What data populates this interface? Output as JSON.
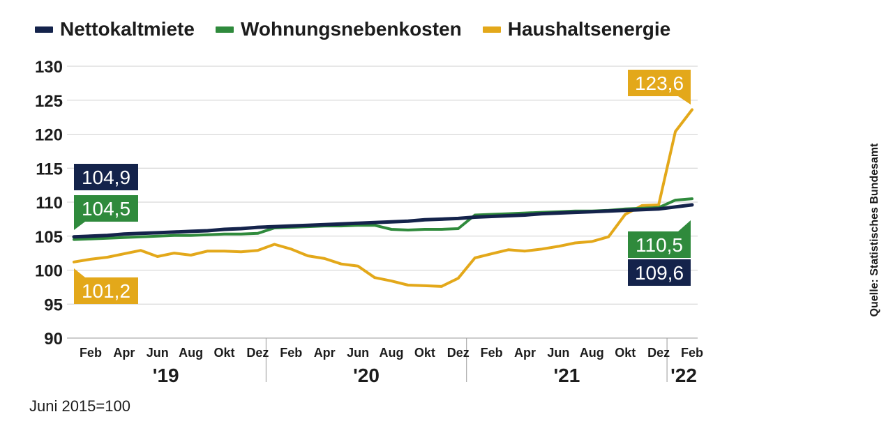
{
  "legend": [
    {
      "name": "Nettokaltmiete",
      "color": "#14234b"
    },
    {
      "name": "Wohnungsnebenkosten",
      "color": "#2f8a3c"
    },
    {
      "name": "Haushaltsenergie",
      "color": "#e3a81a"
    }
  ],
  "source": "Quelle: Statistisches Bundesamt",
  "base_note": "Juni 2015=100",
  "chart_data": {
    "type": "line",
    "y_ticks": [
      90,
      95,
      100,
      105,
      110,
      115,
      120,
      125,
      130
    ],
    "ylim": [
      90,
      130
    ],
    "grid": true,
    "month_labels": [
      "Feb",
      "Apr",
      "Jun",
      "Aug",
      "Okt",
      "Dez",
      "Feb",
      "Apr",
      "Jun",
      "Aug",
      "Okt",
      "Dez",
      "Feb",
      "Apr",
      "Jun",
      "Aug",
      "Okt",
      "Dez",
      "Feb"
    ],
    "year_labels": [
      "'19",
      "'20",
      "'21",
      "'22"
    ],
    "x": [
      "2019-01",
      "2019-02",
      "2019-03",
      "2019-04",
      "2019-05",
      "2019-06",
      "2019-07",
      "2019-08",
      "2019-09",
      "2019-10",
      "2019-11",
      "2019-12",
      "2020-01",
      "2020-02",
      "2020-03",
      "2020-04",
      "2020-05",
      "2020-06",
      "2020-07",
      "2020-08",
      "2020-09",
      "2020-10",
      "2020-11",
      "2020-12",
      "2021-01",
      "2021-02",
      "2021-03",
      "2021-04",
      "2021-05",
      "2021-06",
      "2021-07",
      "2021-08",
      "2021-09",
      "2021-10",
      "2021-11",
      "2021-12",
      "2022-01",
      "2022-02"
    ],
    "series": [
      {
        "name": "Nettokaltmiete",
        "color": "#14234b",
        "values": [
          104.9,
          105.0,
          105.1,
          105.3,
          105.4,
          105.5,
          105.6,
          105.7,
          105.8,
          106.0,
          106.1,
          106.3,
          106.4,
          106.5,
          106.6,
          106.7,
          106.8,
          106.9,
          107.0,
          107.1,
          107.2,
          107.4,
          107.5,
          107.6,
          107.8,
          107.9,
          108.0,
          108.1,
          108.3,
          108.4,
          108.5,
          108.6,
          108.7,
          108.8,
          108.9,
          109.0,
          109.3,
          109.6
        ],
        "start_label": "104,9",
        "end_label": "109,6"
      },
      {
        "name": "Wohnungsnebenkosten",
        "color": "#2f8a3c",
        "values": [
          104.5,
          104.6,
          104.7,
          104.8,
          104.9,
          105.0,
          105.1,
          105.1,
          105.2,
          105.3,
          105.3,
          105.4,
          106.2,
          106.3,
          106.4,
          106.5,
          106.5,
          106.6,
          106.6,
          106.0,
          105.9,
          106.0,
          106.0,
          106.1,
          108.1,
          108.2,
          108.3,
          108.4,
          108.5,
          108.6,
          108.7,
          108.7,
          108.8,
          109.0,
          109.1,
          109.2,
          110.3,
          110.5
        ],
        "start_label": "104,5",
        "end_label": "110,5"
      },
      {
        "name": "Haushaltsenergie",
        "color": "#e3a81a",
        "values": [
          101.2,
          101.6,
          101.9,
          102.4,
          102.9,
          102.0,
          102.5,
          102.2,
          102.8,
          102.8,
          102.7,
          102.9,
          103.8,
          103.1,
          102.1,
          101.7,
          100.9,
          100.6,
          98.9,
          98.4,
          97.8,
          97.7,
          97.6,
          98.8,
          101.8,
          102.4,
          103.0,
          102.8,
          103.1,
          103.5,
          104.0,
          104.2,
          104.9,
          108.2,
          109.5,
          109.6,
          120.4,
          123.6
        ],
        "start_label": "101,2",
        "end_label": "123,6"
      }
    ]
  }
}
